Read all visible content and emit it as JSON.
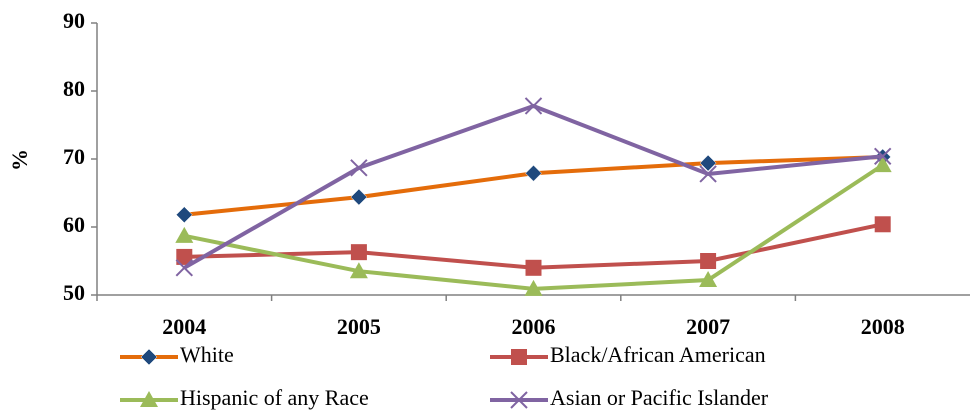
{
  "chart_data": {
    "type": "line",
    "y_label": "%",
    "categories": [
      "2004",
      "2005",
      "2006",
      "2007",
      "2008"
    ],
    "series": [
      {
        "name": "White",
        "color": "#e46c0a",
        "marker": "diamond",
        "marker_color": "#1f497d",
        "values": [
          61.8,
          64.4,
          67.9,
          69.4,
          70.3
        ]
      },
      {
        "name": "Black/African American",
        "color": "#c0504d",
        "marker": "square",
        "marker_color": "#c0504d",
        "values": [
          55.6,
          56.3,
          54.0,
          55.0,
          60.4
        ]
      },
      {
        "name": "Hispanic of any Race",
        "color": "#9bbb59",
        "marker": "triangle",
        "marker_color": "#9bbb59",
        "values": [
          58.7,
          53.5,
          50.9,
          52.2,
          69.1
        ]
      },
      {
        "name": "Asian or Pacific Islander",
        "color": "#8064a2",
        "marker": "x",
        "marker_color": "#8064a2",
        "values": [
          54.0,
          68.7,
          77.8,
          67.8,
          70.4
        ]
      }
    ],
    "ylim": [
      50,
      90
    ],
    "yticks": [
      50,
      60,
      70,
      80,
      90
    ],
    "grid": false
  }
}
